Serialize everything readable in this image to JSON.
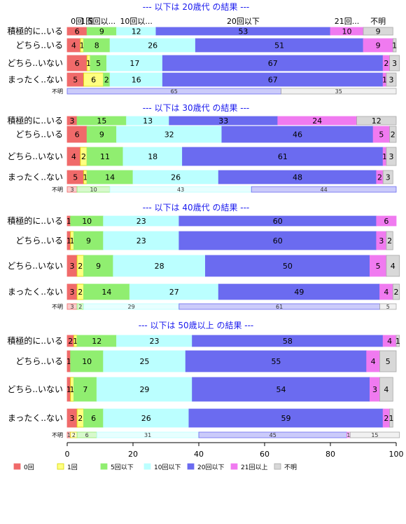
{
  "chart_data": {
    "type": "bar",
    "orientation": "horizontal",
    "stacked": true,
    "xlim": [
      0,
      100
    ],
    "x_ticks": [
      "0",
      "20",
      "40",
      "60",
      "80",
      "100"
    ],
    "legend": {
      "placement": "bottom",
      "labels": [
        "0回",
        "1回",
        "5回以下",
        "10回以下",
        "20回以下",
        "21回以上",
        "不明"
      ]
    },
    "series_colors": [
      "#f06a6a",
      "#ffff80",
      "#90ee70",
      "#bbffff",
      "#6b6bf0",
      "#f07af0",
      "#d8d8d8"
    ],
    "header_labels": [
      "0回",
      "1回",
      "5回以...",
      "10回以...",
      "20回以下",
      "21回...",
      "不明"
    ],
    "panels": [
      {
        "title": "--- 以下は 20歳代 の結果 ---",
        "categories": [
          "積極的に..いる",
          "どちら..いる",
          "どちら..いない",
          "まったく..ない"
        ],
        "rows": [
          [
            6,
            0,
            9,
            12,
            53,
            10,
            9
          ],
          [
            4,
            1,
            8,
            26,
            51,
            9,
            1
          ],
          [
            6,
            1,
            5,
            17,
            67,
            2,
            3
          ],
          [
            5,
            6,
            2,
            16,
            67,
            1,
            3
          ]
        ],
        "unknown_label": "不明",
        "unknown_row": [
          0,
          0,
          0,
          0,
          65,
          0,
          35
        ]
      },
      {
        "title": "--- 以下は 30歳代 の結果 ---",
        "categories": [
          "積極的に..いる",
          "どちら..いる",
          "どちら..いない",
          "まったく..ない"
        ],
        "rows": [
          [
            3,
            0,
            15,
            13,
            33,
            24,
            12
          ],
          [
            6,
            0,
            9,
            32,
            46,
            5,
            2
          ],
          [
            4,
            2,
            11,
            18,
            61,
            1,
            3
          ],
          [
            5,
            1,
            14,
            26,
            48,
            2,
            3
          ]
        ],
        "unknown_label": "不明",
        "unknown_row": [
          3,
          0,
          10,
          43,
          44,
          0,
          0
        ]
      },
      {
        "title": "--- 以下は 40歳代 の結果 ---",
        "categories": [
          "積極的に..いる",
          "どちら..いる",
          "どちら..いない",
          "まったく..ない"
        ],
        "rows": [
          [
            1,
            0,
            10,
            23,
            60,
            6,
            0
          ],
          [
            1,
            1,
            9,
            23,
            60,
            3,
            2
          ],
          [
            3,
            2,
            9,
            28,
            50,
            5,
            4
          ],
          [
            3,
            2,
            14,
            27,
            49,
            4,
            2
          ]
        ],
        "unknown_label": "不明",
        "unknown_row": [
          3,
          0,
          2,
          29,
          61,
          0,
          5
        ]
      },
      {
        "title": "--- 以下は 50歳以上 の結果 ---",
        "categories": [
          "積極的に..いる",
          "どちら..いる",
          "どちら..いない",
          "まったく..ない"
        ],
        "rows": [
          [
            2,
            1,
            12,
            23,
            58,
            4,
            1
          ],
          [
            1,
            0,
            10,
            25,
            55,
            4,
            5
          ],
          [
            1,
            1,
            7,
            29,
            54,
            3,
            4
          ],
          [
            3,
            2,
            6,
            26,
            59,
            2,
            1
          ]
        ],
        "unknown_label": "不明",
        "unknown_row": [
          1,
          2,
          6,
          31,
          45,
          1,
          15
        ]
      }
    ]
  }
}
